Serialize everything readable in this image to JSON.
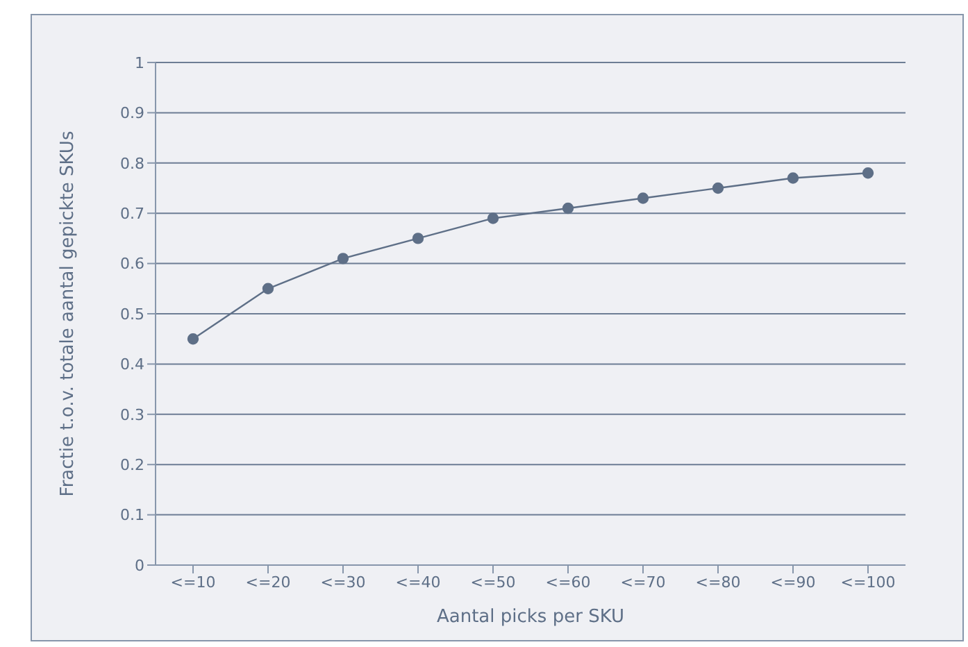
{
  "chart_data": {
    "type": "line",
    "xlabel": "Aantal picks per SKU",
    "ylabel": "Fractie t.o.v. totale aantal gepickte SKUs",
    "categories": [
      "<=10",
      "<=20",
      "<=30",
      "<=40",
      "<=50",
      "<=60",
      "<=70",
      "<=80",
      "<=90",
      "<=100"
    ],
    "series": [
      {
        "color": "#5e6f87",
        "values": [
          0.45,
          0.55,
          0.61,
          0.65,
          0.69,
          0.71,
          0.73,
          0.75,
          0.77,
          0.78
        ]
      }
    ],
    "ylim": [
      0,
      1
    ],
    "yticks": [
      0,
      0.1,
      0.2,
      0.3,
      0.4,
      0.5,
      0.6,
      0.7,
      0.8,
      0.9,
      1
    ],
    "grid": "y",
    "marker": "circle",
    "line_style": "solid"
  }
}
